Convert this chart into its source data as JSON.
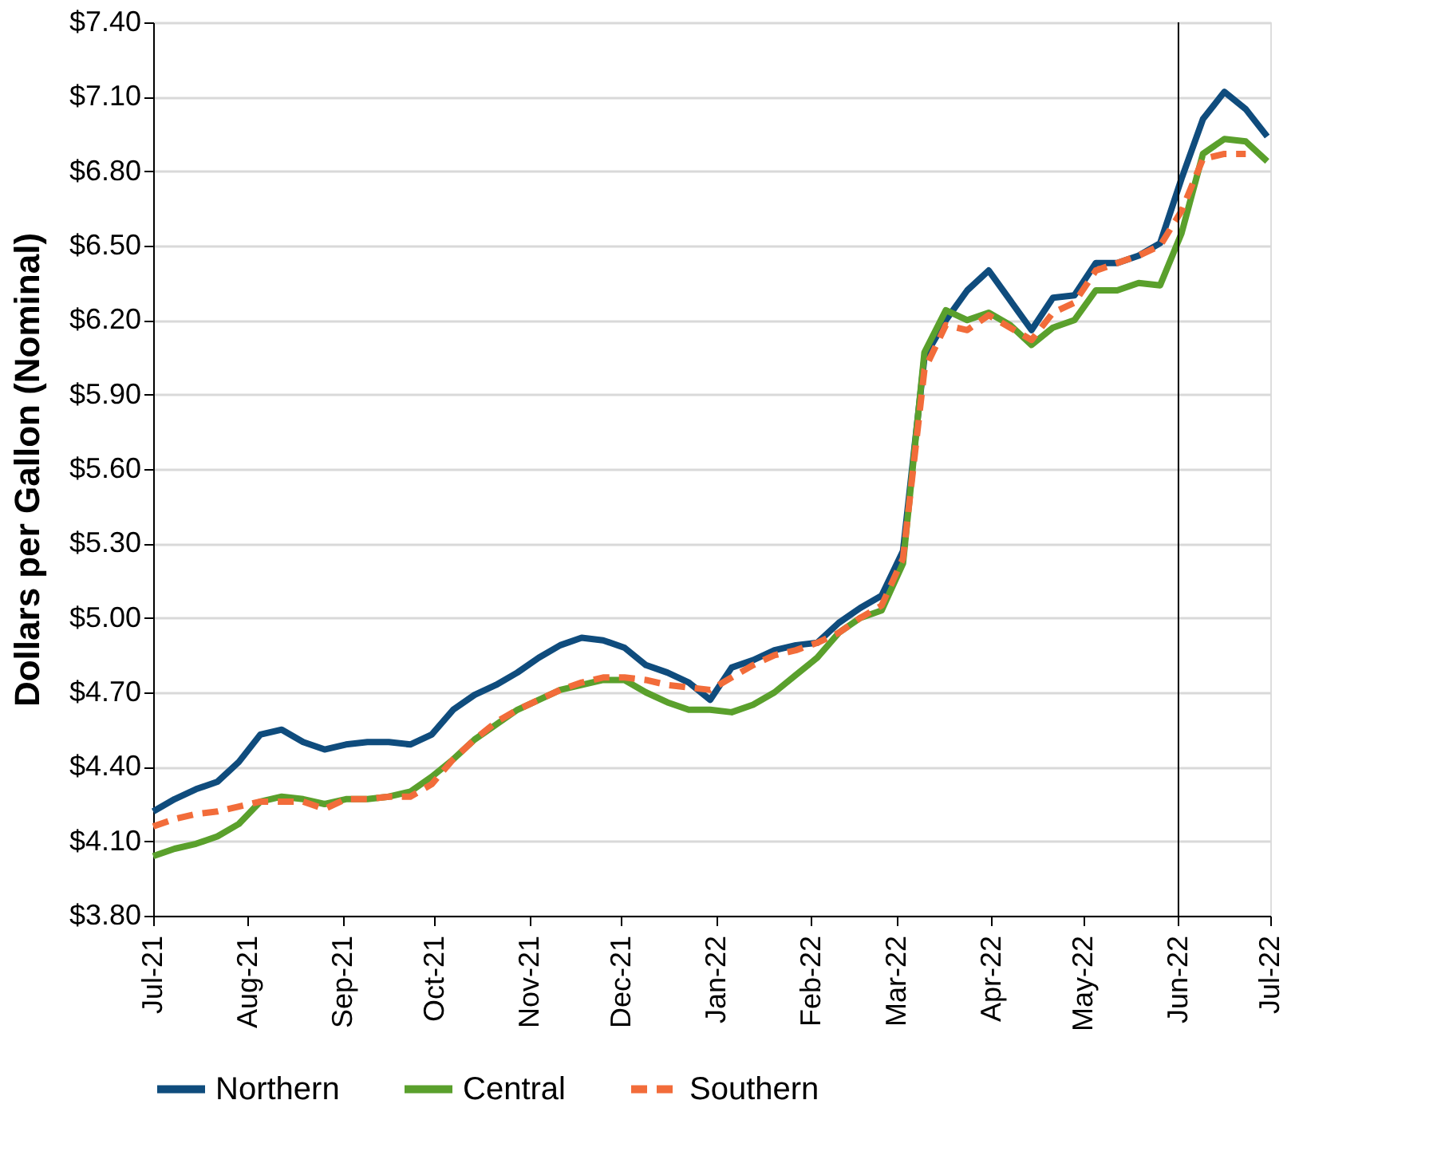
{
  "chart_data": {
    "type": "line",
    "ylabel": "Dollars per Gallon (Nominal)",
    "x": [
      "2021-07-01",
      "2021-07-08",
      "2021-07-15",
      "2021-07-22",
      "2021-07-29",
      "2021-08-05",
      "2021-08-12",
      "2021-08-19",
      "2021-08-26",
      "2021-09-02",
      "2021-09-09",
      "2021-09-16",
      "2021-09-23",
      "2021-09-30",
      "2021-10-07",
      "2021-10-14",
      "2021-10-21",
      "2021-10-28",
      "2021-11-04",
      "2021-11-11",
      "2021-11-18",
      "2021-11-25",
      "2021-12-02",
      "2021-12-09",
      "2021-12-16",
      "2021-12-23",
      "2021-12-30",
      "2022-01-06",
      "2022-01-13",
      "2022-01-20",
      "2022-01-27",
      "2022-02-03",
      "2022-02-10",
      "2022-02-17",
      "2022-02-24",
      "2022-03-03",
      "2022-03-10",
      "2022-03-17",
      "2022-03-24",
      "2022-03-31",
      "2022-04-07",
      "2022-04-14",
      "2022-04-21",
      "2022-04-28",
      "2022-05-05",
      "2022-05-12",
      "2022-05-19",
      "2022-05-26",
      "2022-06-02",
      "2022-06-09",
      "2022-06-16",
      "2022-06-23",
      "2022-06-30"
    ],
    "series": [
      {
        "name": "Northern",
        "color": "#0f4c7d",
        "line_style": "solid",
        "values": [
          4.22,
          4.27,
          4.31,
          4.34,
          4.42,
          4.53,
          4.55,
          4.5,
          4.47,
          4.49,
          4.5,
          4.5,
          4.49,
          4.53,
          4.63,
          4.69,
          4.73,
          4.78,
          4.84,
          4.89,
          4.92,
          4.91,
          4.88,
          4.81,
          4.78,
          4.74,
          4.67,
          4.8,
          4.83,
          4.87,
          4.89,
          4.9,
          4.98,
          5.04,
          5.09,
          5.27,
          6.05,
          6.2,
          6.32,
          6.4,
          6.28,
          6.16,
          6.29,
          6.3,
          6.43,
          6.43,
          6.46,
          6.51,
          6.77,
          7.01,
          7.12,
          7.05,
          6.94
        ]
      },
      {
        "name": "Central",
        "color": "#5aa02c",
        "line_style": "solid",
        "values": [
          4.04,
          4.07,
          4.09,
          4.12,
          4.17,
          4.26,
          4.28,
          4.27,
          4.25,
          4.27,
          4.27,
          4.28,
          4.3,
          4.36,
          4.43,
          4.51,
          4.57,
          4.63,
          4.67,
          4.71,
          4.73,
          4.75,
          4.75,
          4.7,
          4.66,
          4.63,
          4.63,
          4.62,
          4.65,
          4.7,
          4.77,
          4.84,
          4.94,
          5.0,
          5.03,
          5.22,
          6.07,
          6.24,
          6.2,
          6.23,
          6.18,
          6.1,
          6.17,
          6.2,
          6.32,
          6.32,
          6.35,
          6.34,
          6.55,
          6.87,
          6.93,
          6.92,
          6.84
        ]
      },
      {
        "name": "Southern",
        "color": "#f26c3a",
        "line_style": "dashed",
        "values": [
          4.16,
          4.19,
          4.21,
          4.22,
          4.24,
          4.26,
          4.26,
          4.26,
          4.23,
          4.27,
          4.27,
          4.28,
          4.28,
          4.33,
          4.43,
          4.51,
          4.58,
          4.63,
          4.67,
          4.71,
          4.74,
          4.76,
          4.76,
          4.75,
          4.73,
          4.72,
          4.71,
          4.76,
          4.81,
          4.85,
          4.87,
          4.9,
          4.94,
          5.0,
          5.05,
          5.24,
          6.0,
          6.18,
          6.16,
          6.22,
          6.17,
          6.12,
          6.23,
          6.27,
          6.4,
          6.43,
          6.46,
          6.5,
          6.64,
          6.85,
          6.87,
          6.87,
          null
        ]
      }
    ],
    "xlim": [
      "2021-07-01",
      "2022-07-01"
    ],
    "xticks": [
      {
        "value": "2021-07-01",
        "label": "Jul-21"
      },
      {
        "value": "2021-08-01",
        "label": "Aug-21"
      },
      {
        "value": "2021-09-01",
        "label": "Sep-21"
      },
      {
        "value": "2021-10-01",
        "label": "Oct-21"
      },
      {
        "value": "2021-11-01",
        "label": "Nov-21"
      },
      {
        "value": "2021-12-01",
        "label": "Dec-21"
      },
      {
        "value": "2022-01-01",
        "label": "Jan-22"
      },
      {
        "value": "2022-02-01",
        "label": "Feb-22"
      },
      {
        "value": "2022-03-01",
        "label": "Mar-22"
      },
      {
        "value": "2022-04-01",
        "label": "Apr-22"
      },
      {
        "value": "2022-05-01",
        "label": "May-22"
      },
      {
        "value": "2022-06-01",
        "label": "Jun-22"
      },
      {
        "value": "2022-07-01",
        "label": "Jul-22"
      }
    ],
    "ylim": [
      3.8,
      7.4
    ],
    "yticks": [
      {
        "value": 3.8,
        "label": "$3.80"
      },
      {
        "value": 4.1,
        "label": "$4.10"
      },
      {
        "value": 4.4,
        "label": "$4.40"
      },
      {
        "value": 4.7,
        "label": "$4.70"
      },
      {
        "value": 5.0,
        "label": "$5.00"
      },
      {
        "value": 5.3,
        "label": "$5.30"
      },
      {
        "value": 5.6,
        "label": "$5.60"
      },
      {
        "value": 5.9,
        "label": "$5.90"
      },
      {
        "value": 6.2,
        "label": "$6.20"
      },
      {
        "value": 6.5,
        "label": "$6.50"
      },
      {
        "value": 6.8,
        "label": "$6.80"
      },
      {
        "value": 7.1,
        "label": "$7.10"
      },
      {
        "value": 7.4,
        "label": "$7.40"
      }
    ],
    "ref_lines": [
      {
        "axis": "x",
        "value": "2022-06-01",
        "color": "#000000",
        "line_style": "solid"
      }
    ],
    "grid": "y",
    "legend": "bottom",
    "marker": "none"
  }
}
